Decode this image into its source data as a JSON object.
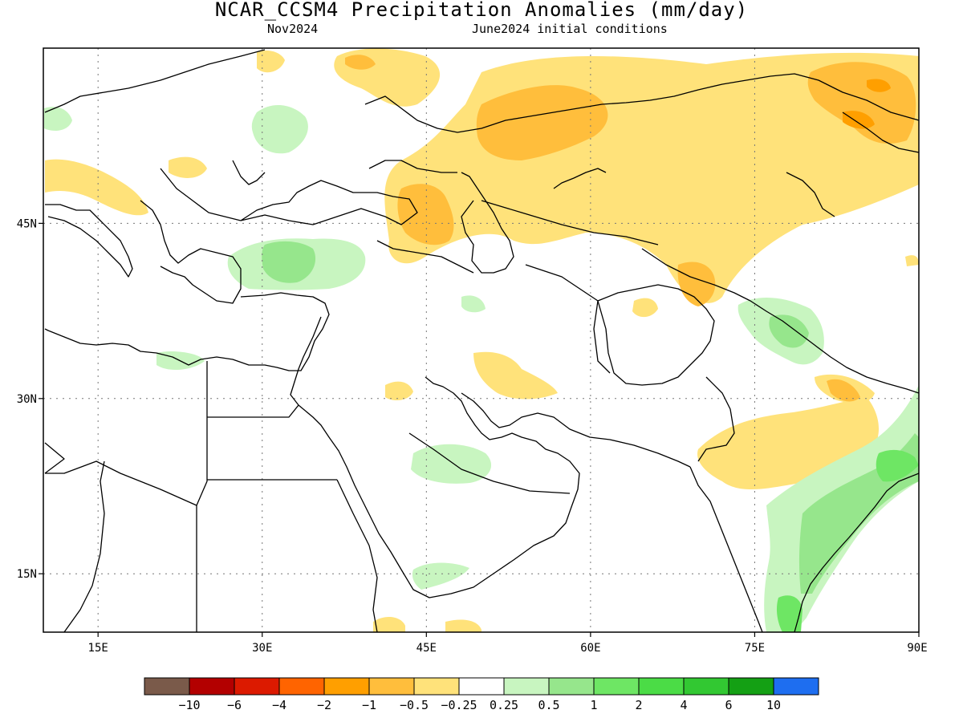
{
  "title": "NCAR_CCSM4 Precipitation Anomalies (mm/day)",
  "subtitle_left": "Nov2024",
  "subtitle_right": "June2024 initial conditions",
  "map": {
    "lon_range": [
      10,
      90
    ],
    "lat_range": [
      10,
      60
    ],
    "lon_ticks": [
      {
        "value": 15,
        "label": "15E"
      },
      {
        "value": 30,
        "label": "30E"
      },
      {
        "value": 45,
        "label": "45E"
      },
      {
        "value": 60,
        "label": "60E"
      },
      {
        "value": 75,
        "label": "75E"
      },
      {
        "value": 90,
        "label": "90E"
      }
    ],
    "lat_ticks": [
      {
        "value": 45,
        "label": "45N"
      },
      {
        "value": 30,
        "label": "30N"
      },
      {
        "value": 15,
        "label": "15N"
      }
    ],
    "gridlines": "dotted"
  },
  "colorbar": {
    "colors": [
      "#7a5a4a",
      "#b30000",
      "#dc1a00",
      "#ff6400",
      "#ff9f00",
      "#ffbe3c",
      "#ffe27a",
      "#ffffff",
      "#c8f5c0",
      "#96e68c",
      "#6ee664",
      "#4bdc46",
      "#32c832",
      "#14a014",
      "#1e6ef0"
    ],
    "labels": [
      "-10",
      "-6",
      "-4",
      "-2",
      "-1",
      "-0.5",
      "-0.25",
      "0.25",
      "0.5",
      "1",
      "2",
      "4",
      "6",
      "10"
    ]
  },
  "legend": {
    "dry_light": "#ffe27a",
    "dry_mid": "#ffbe3c",
    "dry_strong": "#ff9f00",
    "wet_light": "#c8f5c0",
    "wet_mid": "#96e68c",
    "wet_strong": "#6ee664"
  }
}
